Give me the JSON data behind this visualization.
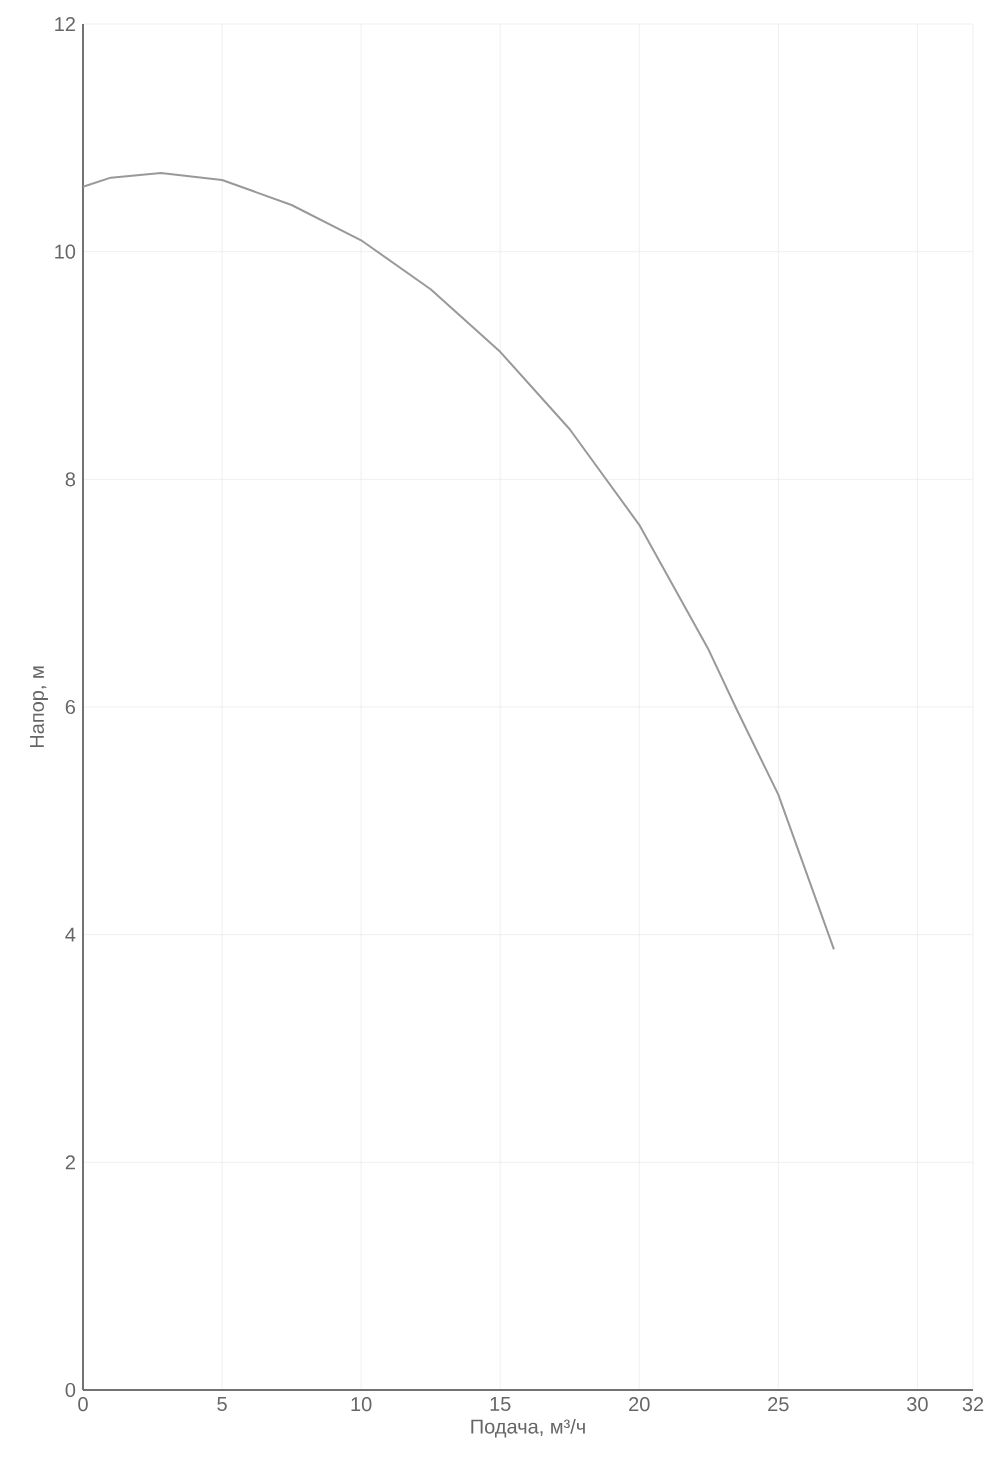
{
  "chart_data": {
    "type": "line",
    "xlabel": "Подача, м³/ч",
    "ylabel": "Напор, м",
    "x": [
      0,
      1,
      2.8,
      5,
      7.5,
      10,
      12.5,
      15,
      17.5,
      20,
      22.5,
      23.5,
      25,
      27
    ],
    "series": [
      {
        "color": "#999999",
        "values": [
          10.57,
          10.65,
          10.69,
          10.63,
          10.41,
          10.1,
          9.67,
          9.12,
          8.44,
          7.6,
          6.5,
          5.98,
          5.23,
          3.87
        ]
      }
    ],
    "xlim": [
      0,
      32
    ],
    "ylim": [
      0,
      12
    ],
    "xticks": [
      0,
      5,
      10,
      15,
      20,
      25,
      30,
      32
    ],
    "yticks": [
      0,
      2,
      4,
      6,
      8,
      10,
      12
    ],
    "grid": true,
    "marker": "none",
    "line_style": "solid"
  }
}
